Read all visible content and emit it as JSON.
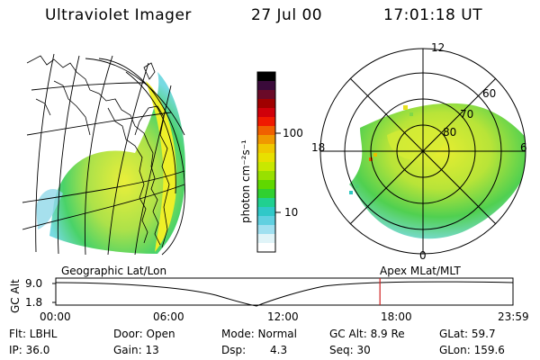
{
  "header": {
    "instrument": "Ultraviolet Imager",
    "date": "27 Jul 00",
    "time": "17:01:18 UT"
  },
  "colorbar": {
    "unit_label": "photon cm⁻²s⁻¹",
    "ticks": [
      "100",
      "10"
    ],
    "colors": [
      "#000000",
      "#3a0a3a",
      "#6a0a28",
      "#a00000",
      "#d0000a",
      "#f01a00",
      "#f06000",
      "#f09800",
      "#f0c800",
      "#e8e000",
      "#c8e800",
      "#98e000",
      "#60d800",
      "#30d030",
      "#20d090",
      "#30c8c8",
      "#60d0e0",
      "#a0e0f0",
      "#e0f4f8",
      "#ffffff"
    ]
  },
  "polar_plot": {
    "labels": [
      "12",
      "18",
      "6",
      "0",
      "80",
      "70",
      "60"
    ]
  },
  "timeline": {
    "title_left": "Geographic Lat/Lon",
    "title_right": "Apex MLat/MLT",
    "axis_label": "GC Alt",
    "y_ticks": [
      "9.0",
      "1.8"
    ],
    "x_ticks": [
      "00:00",
      "06:00",
      "12:00",
      "18:00",
      "23:59"
    ],
    "marker_time_fraction": 0.709
  },
  "status": {
    "row1": [
      "Flt: LBHL",
      "Door: Open",
      "Mode: Normal",
      "GC Alt: 8.9 Re",
      "GLat: 59.7"
    ],
    "row2": [
      "IP: 36.0",
      "Gain: 13",
      "Dsp:",
      "4.3",
      "Seq: 30",
      "GLon: 159.6"
    ]
  }
}
